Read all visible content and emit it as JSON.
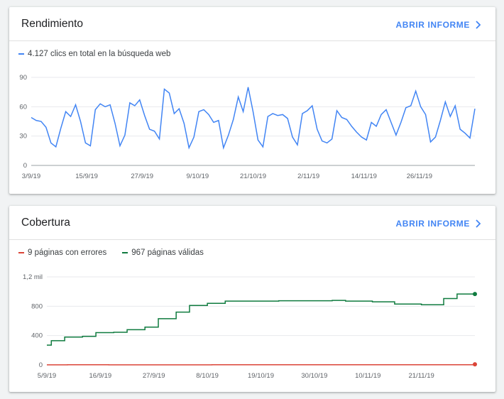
{
  "colors": {
    "accent": "#4285f4",
    "series_blue": "#4285f4",
    "series_red": "#db4437",
    "series_green": "#0f7b3f"
  },
  "perf": {
    "title": "Rendimiento",
    "open_label": "ABRIR INFORME",
    "legend": "4.127 clics en total en la búsqueda web"
  },
  "cov": {
    "title": "Cobertura",
    "open_label": "ABRIR INFORME",
    "legend_errors": "9 páginas con errores",
    "legend_valid": "967 páginas válidas"
  },
  "chart_data": [
    {
      "type": "line",
      "xlabel": "",
      "ylabel": "",
      "ylim": [
        0,
        90
      ],
      "yticks": [
        0,
        30,
        60,
        90
      ],
      "xtick_labels": [
        "3/9/19",
        "15/9/19",
        "27/9/19",
        "9/10/19",
        "21/10/19",
        "2/11/19",
        "14/11/19",
        "26/11/19"
      ],
      "x_start": "3/9/19",
      "x_end": "1/12/19",
      "series": [
        {
          "name": "4.127 clics en total en la búsqueda web",
          "values": [
            49,
            46,
            45,
            39,
            23,
            19,
            38,
            55,
            50,
            62,
            45,
            23,
            20,
            57,
            63,
            60,
            62,
            43,
            20,
            31,
            64,
            61,
            67,
            51,
            37,
            35,
            27,
            78,
            74,
            53,
            58,
            43,
            18,
            29,
            55,
            57,
            52,
            44,
            46,
            18,
            31,
            47,
            70,
            55,
            80,
            55,
            26,
            19,
            50,
            53,
            51,
            52,
            48,
            29,
            21,
            53,
            56,
            61,
            37,
            25,
            23,
            27,
            56,
            49,
            47,
            40,
            34,
            29,
            26,
            44,
            40,
            52,
            57,
            44,
            31,
            44,
            59,
            61,
            76,
            60,
            52,
            24,
            29,
            46,
            65,
            50,
            61,
            37,
            33,
            28,
            58
          ]
        }
      ]
    },
    {
      "type": "line",
      "xlabel": "",
      "ylabel": "",
      "ylim": [
        0,
        1200
      ],
      "yticks": [
        0,
        400,
        800,
        1200
      ],
      "ytick_labels": [
        "0",
        "400",
        "800",
        "1,2 mil"
      ],
      "xtick_labels": [
        "5/9/19",
        "16/9/19",
        "27/9/19",
        "8/10/19",
        "19/10/19",
        "30/10/19",
        "10/11/19",
        "21/11/19"
      ],
      "x_start": "5/9/19",
      "x_end": "29/11/19",
      "series": [
        {
          "name": "9 páginas con errores",
          "values": [
            1,
            1,
            1,
            1,
            2,
            2,
            2,
            2,
            2,
            2,
            2,
            2,
            1,
            1,
            1,
            1,
            1,
            1,
            1,
            1,
            1,
            1,
            1,
            1,
            1,
            1,
            1,
            1,
            1,
            1,
            1,
            1,
            2,
            2,
            2,
            2,
            2,
            2,
            2,
            2,
            2,
            2,
            2,
            2,
            2,
            2,
            2,
            2,
            2,
            2,
            2,
            2,
            2,
            2,
            2,
            2,
            2,
            2,
            2,
            2,
            2,
            2,
            2,
            2,
            2,
            2,
            2,
            2,
            2,
            2,
            2,
            2,
            2,
            2,
            2,
            2,
            2,
            2,
            2,
            2,
            2,
            2,
            2,
            9
          ]
        },
        {
          "name": "967 páginas válidas",
          "values": [
            270,
            330,
            330,
            330,
            380,
            380,
            380,
            380,
            390,
            390,
            390,
            440,
            440,
            440,
            440,
            445,
            445,
            445,
            480,
            480,
            480,
            480,
            515,
            515,
            515,
            630,
            630,
            630,
            630,
            720,
            720,
            720,
            810,
            810,
            810,
            810,
            840,
            840,
            840,
            840,
            870,
            870,
            870,
            870,
            870,
            870,
            870,
            870,
            870,
            870,
            870,
            870,
            875,
            875,
            875,
            875,
            875,
            875,
            875,
            875,
            875,
            875,
            875,
            875,
            880,
            880,
            880,
            870,
            870,
            870,
            870,
            870,
            870,
            860,
            860,
            860,
            860,
            860,
            830,
            830,
            830,
            830,
            830,
            830,
            820,
            820,
            820,
            820,
            820,
            905,
            905,
            905,
            967,
            967,
            967,
            967,
            967
          ]
        }
      ]
    }
  ]
}
